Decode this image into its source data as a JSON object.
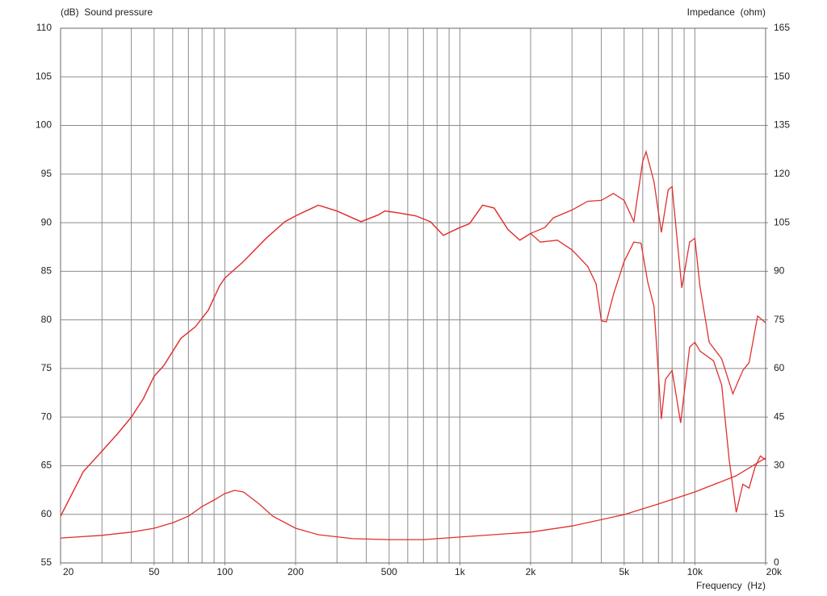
{
  "chart_data": {
    "type": "line",
    "y_label": "(dB)  Sound pressure",
    "y2_label": "Impedance  (ohm)",
    "x_label": "Frequency  (Hz)",
    "log_x": true,
    "grid": true,
    "xlim": [
      20,
      20000
    ],
    "xticks": [
      20,
      50,
      100,
      200,
      500,
      {
        "value": 1000,
        "label": "1k"
      },
      {
        "value": 2000,
        "label": "2k"
      },
      {
        "value": 5000,
        "label": "5k"
      },
      {
        "value": 10000,
        "label": "10k"
      },
      {
        "value": 20000,
        "label": "20k"
      }
    ],
    "xgrid": [
      20,
      30,
      40,
      50,
      60,
      70,
      80,
      90,
      100,
      200,
      300,
      400,
      500,
      600,
      700,
      800,
      900,
      1000,
      2000,
      3000,
      4000,
      5000,
      6000,
      7000,
      8000,
      9000,
      10000,
      20000
    ],
    "ylim": [
      55,
      110
    ],
    "yticks": [
      55,
      60,
      65,
      70,
      75,
      80,
      85,
      90,
      95,
      100,
      105,
      110
    ],
    "y2lim": [
      0,
      165
    ],
    "y2ticks": [
      0,
      15,
      30,
      45,
      60,
      75,
      90,
      105,
      120,
      135,
      150,
      165
    ],
    "series": [
      {
        "color": "#e0302f",
        "x": [
          20,
          25,
          30,
          35,
          40,
          45,
          50,
          55,
          65,
          75,
          85,
          95,
          100,
          120,
          150,
          180,
          200,
          250,
          300,
          380,
          450,
          480,
          550,
          650,
          750,
          850,
          1000,
          1100,
          1250,
          1400,
          1600,
          1800,
          2000,
          2300,
          2500,
          3000,
          3500,
          4000,
          4500,
          5000,
          5500,
          6000,
          6200,
          6700,
          7200,
          7700,
          8000,
          8800,
          9500,
          10000,
          10500,
          11500,
          13000,
          14500,
          16000,
          17000,
          18500,
          20000
        ],
        "values": [
          59.8,
          64.4,
          66.5,
          68.3,
          70.0,
          71.9,
          74.2,
          75.3,
          78.1,
          79.3,
          81.0,
          83.5,
          84.3,
          86.0,
          88.4,
          90.1,
          90.7,
          91.8,
          91.2,
          90.1,
          90.8,
          91.2,
          91.0,
          90.7,
          90.1,
          88.7,
          89.5,
          89.9,
          91.8,
          91.5,
          89.3,
          88.2,
          88.9,
          89.5,
          90.5,
          91.3,
          92.2,
          92.3,
          93.0,
          92.3,
          90.1,
          96.3,
          97.3,
          94.2,
          89.0,
          93.4,
          93.7,
          83.3,
          88.0,
          88.4,
          83.5,
          77.7,
          76.0,
          72.4,
          74.8,
          75.6,
          80.4,
          79.7
        ]
      },
      {
        "color": "#e0302f",
        "x": [
          20,
          25,
          30,
          35,
          40,
          45,
          50,
          55,
          65,
          75,
          85,
          95,
          100,
          120,
          150,
          180,
          200,
          250,
          300,
          380,
          450,
          480,
          550,
          650,
          750,
          850,
          1000,
          1100,
          1250,
          1400,
          1600,
          1800,
          2000,
          2200,
          2600,
          3000,
          3500,
          3800,
          4000,
          4200,
          4500,
          5000,
          5500,
          5900,
          6300,
          6700,
          7200,
          7500,
          8000,
          8700,
          9500,
          10000,
          10500,
          12000,
          13000,
          14000,
          15000,
          16000,
          17000,
          18000,
          19000,
          20000
        ],
        "values": [
          59.8,
          64.4,
          66.5,
          68.3,
          70.0,
          71.9,
          74.2,
          75.3,
          78.1,
          79.3,
          81.0,
          83.5,
          84.3,
          86.0,
          88.4,
          90.1,
          90.7,
          91.8,
          91.2,
          90.1,
          90.8,
          91.2,
          91.0,
          90.7,
          90.1,
          88.7,
          89.5,
          89.9,
          91.8,
          91.5,
          89.3,
          88.2,
          88.9,
          88.0,
          88.2,
          87.2,
          85.5,
          83.7,
          79.9,
          79.8,
          82.6,
          86.0,
          88.0,
          87.9,
          83.9,
          81.4,
          69.8,
          73.9,
          74.8,
          69.4,
          77.2,
          77.7,
          76.8,
          75.8,
          73.3,
          65.6,
          60.2,
          63.1,
          62.7,
          64.8,
          66.0,
          65.6
        ]
      },
      {
        "color": "#e0302f",
        "axis": "y2",
        "x": [
          20,
          30,
          40,
          50,
          60,
          70,
          80,
          90,
          100,
          110,
          120,
          140,
          160,
          200,
          250,
          350,
          500,
          700,
          1000,
          2000,
          3000,
          5000,
          7000,
          10000,
          15000,
          20000
        ],
        "values": [
          7.7,
          8.5,
          9.5,
          10.7,
          12.4,
          14.4,
          17.4,
          19.4,
          21.4,
          22.4,
          21.9,
          18.2,
          14.4,
          10.7,
          8.7,
          7.5,
          7.2,
          7.2,
          8.0,
          9.5,
          11.4,
          14.9,
          18.2,
          21.9,
          26.9,
          32.4
        ]
      }
    ]
  }
}
